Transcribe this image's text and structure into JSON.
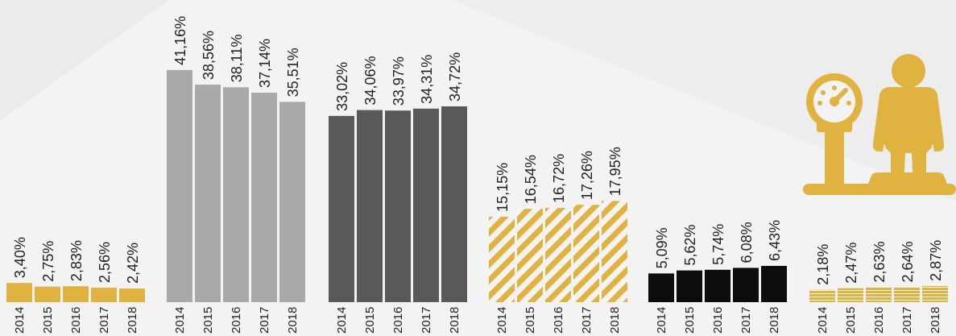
{
  "colors": {
    "gold": "#e0b23f",
    "light_gray": "#a8a9ab",
    "dark_gray": "#58595b",
    "black": "#0d0d0d",
    "stripe_light": "#f3f3f3",
    "icon": "#e0b23f",
    "text": "#222222"
  },
  "icon": {
    "name": "person-on-scale-icon"
  },
  "chart_data": [
    {
      "type": "bar",
      "categories": [
        "2014",
        "2015",
        "2016",
        "2017",
        "2018"
      ],
      "values": [
        3.4,
        2.75,
        2.83,
        2.56,
        2.42
      ],
      "value_labels": [
        "3,40%",
        "2,75%",
        "2,83%",
        "2,56%",
        "2,42%"
      ],
      "style": "solid",
      "color": "gold"
    },
    {
      "type": "bar",
      "categories": [
        "2014",
        "2015",
        "2016",
        "2017",
        "2018"
      ],
      "values": [
        41.16,
        38.56,
        38.11,
        37.14,
        35.51
      ],
      "value_labels": [
        "41,16%",
        "38,56%",
        "38,11%",
        "37,14%",
        "35,51%"
      ],
      "style": "solid",
      "color": "light_gray"
    },
    {
      "type": "bar",
      "categories": [
        "2014",
        "2015",
        "2016",
        "2017",
        "2018"
      ],
      "values": [
        33.02,
        34.06,
        33.97,
        34.31,
        34.72
      ],
      "value_labels": [
        "33,02%",
        "34,06%",
        "33,97%",
        "34,31%",
        "34,72%"
      ],
      "style": "solid",
      "color": "dark_gray"
    },
    {
      "type": "bar",
      "categories": [
        "2014",
        "2015",
        "2016",
        "2017",
        "2018"
      ],
      "values": [
        15.15,
        16.54,
        16.72,
        17.26,
        17.95
      ],
      "value_labels": [
        "15,15%",
        "16,54%",
        "16,72%",
        "17,26%",
        "17,95%"
      ],
      "style": "diagonal-stripes",
      "color": "gold"
    },
    {
      "type": "bar",
      "categories": [
        "2014",
        "2015",
        "2016",
        "2017",
        "2018"
      ],
      "values": [
        5.09,
        5.62,
        5.74,
        6.08,
        6.43
      ],
      "value_labels": [
        "5,09%",
        "5,62%",
        "5,74%",
        "6,08%",
        "6,43%"
      ],
      "style": "solid",
      "color": "black"
    },
    {
      "type": "bar",
      "categories": [
        "2014",
        "2015",
        "2016",
        "2017",
        "2018"
      ],
      "values": [
        2.18,
        2.47,
        2.63,
        2.64,
        2.87
      ],
      "value_labels": [
        "2,18%",
        "2,47%",
        "2,63%",
        "2,64%",
        "2,87%"
      ],
      "style": "horizontal-stripes",
      "color": "gold"
    }
  ]
}
